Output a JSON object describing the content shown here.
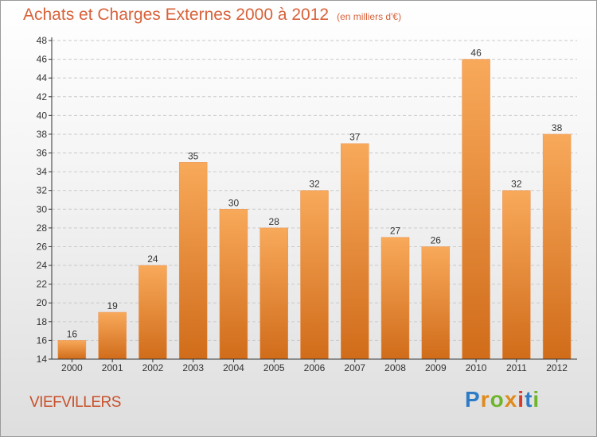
{
  "header": {
    "title": "Achats et Charges Externes 2000 à 2012",
    "subtitle": "(en milliers d'€)"
  },
  "footer": {
    "location": "VIEFVILLERS",
    "brand": "Proxiti"
  },
  "colors": {
    "bar_top": "#f8a95a",
    "bar_bottom": "#d06c1a",
    "title": "#d8623a",
    "axis": "#333333"
  },
  "chart_data": {
    "type": "bar",
    "title": "Achats et Charges Externes 2000 à 2012",
    "subtitle": "(en milliers d'€)",
    "categories": [
      "2000",
      "2001",
      "2002",
      "2003",
      "2004",
      "2005",
      "2006",
      "2007",
      "2008",
      "2009",
      "2010",
      "2011",
      "2012"
    ],
    "values": [
      16,
      19,
      24,
      35,
      30,
      28,
      32,
      37,
      27,
      26,
      46,
      32,
      38
    ],
    "ylim": [
      14,
      48
    ],
    "yticks": [
      14,
      16,
      18,
      20,
      22,
      24,
      26,
      28,
      30,
      32,
      34,
      36,
      38,
      40,
      42,
      44,
      46,
      48
    ],
    "grid": true,
    "data_labels": true,
    "xlabel": "",
    "ylabel": ""
  }
}
